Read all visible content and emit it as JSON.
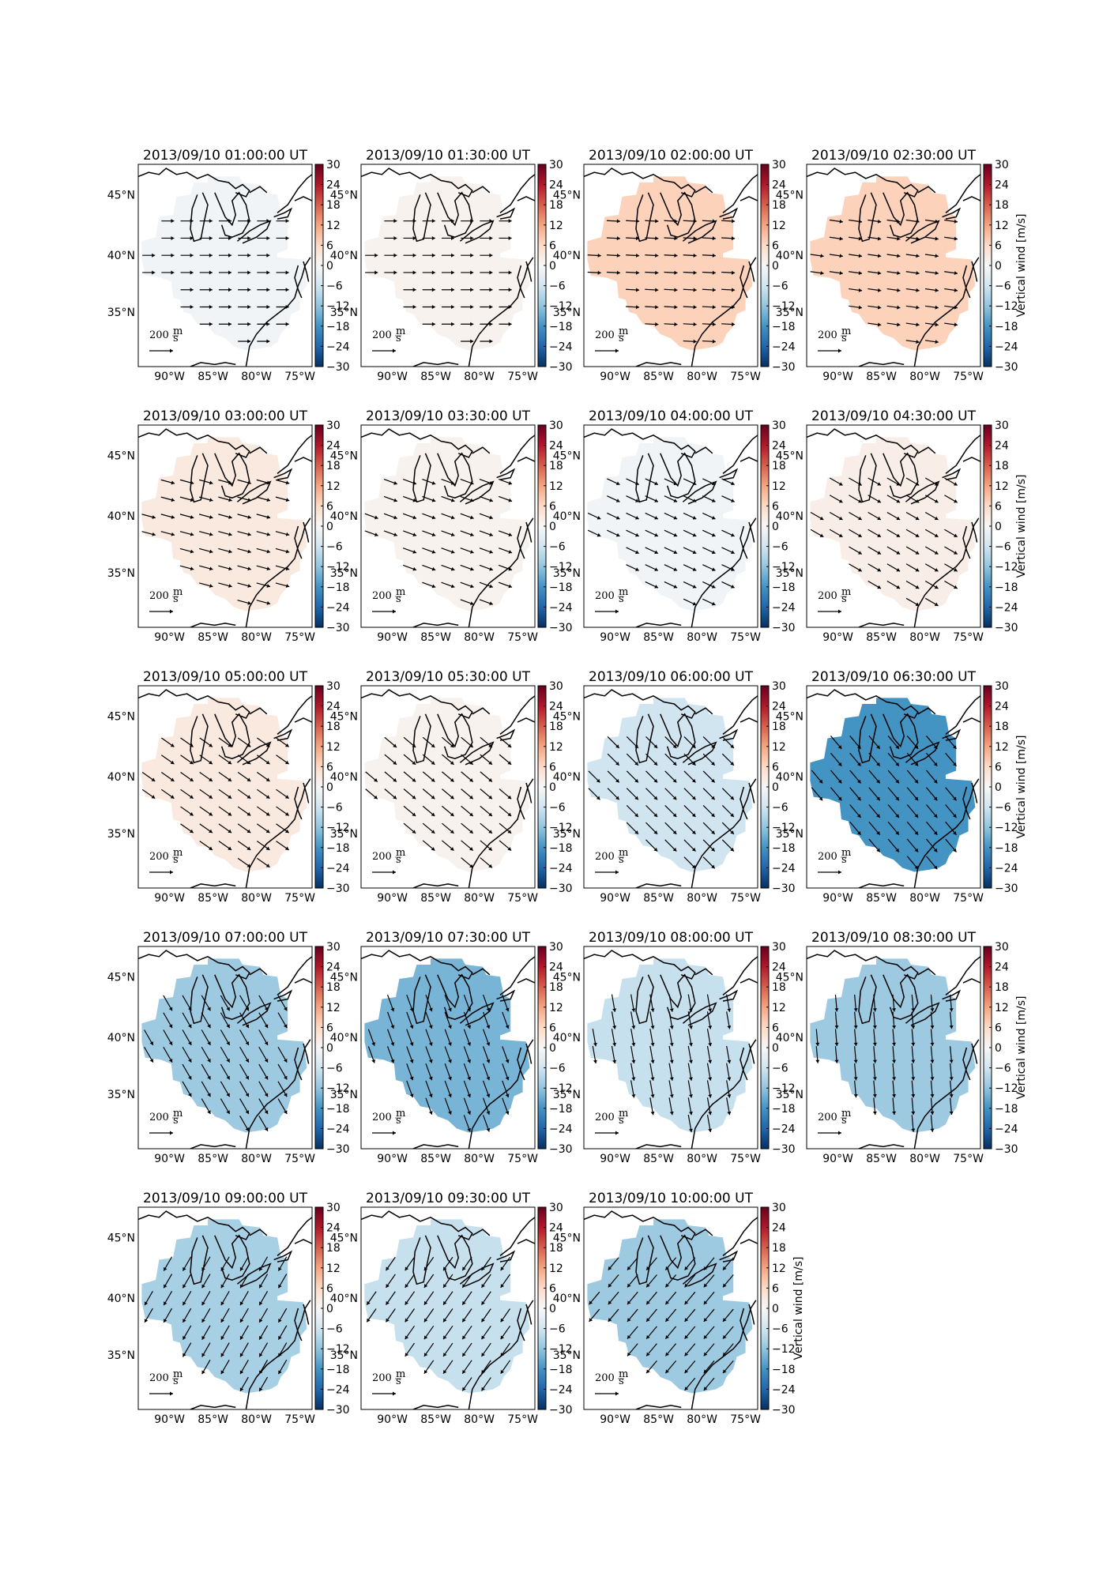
{
  "chart_data": {
    "type": "heatmap",
    "description_units": "vertical wind color scale with horizontal wind vectors over the eastern United States",
    "colorbar": {
      "label": "Vertical wind [m/s]",
      "range": [
        -30,
        30
      ],
      "ticks": [
        "30",
        "24",
        "18",
        "12",
        "6",
        "0",
        "−6",
        "−12",
        "−18",
        "−24",
        "−30"
      ]
    },
    "lon_ticks": [
      "90°W",
      "85°W",
      "80°W",
      "75°W"
    ],
    "lat_ticks": [
      "45°N",
      "40°N",
      "35°N"
    ],
    "vector_key": "200",
    "vector_key_unit_num": "m",
    "vector_key_unit_den": "s",
    "panels": [
      {
        "title": "2013/09/10 01:00:00 UT",
        "vertical_wind": -1,
        "wind_dir_deg": 0,
        "wind_len": 0.45
      },
      {
        "title": "2013/09/10 01:30:00 UT",
        "vertical_wind": 1,
        "wind_dir_deg": 0,
        "wind_len": 0.45
      },
      {
        "title": "2013/09/10 02:00:00 UT",
        "vertical_wind": 7,
        "wind_dir_deg": 3,
        "wind_len": 0.5
      },
      {
        "title": "2013/09/10 02:30:00 UT",
        "vertical_wind": 7,
        "wind_dir_deg": 8,
        "wind_len": 0.5
      },
      {
        "title": "2013/09/10 03:00:00 UT",
        "vertical_wind": 3,
        "wind_dir_deg": 15,
        "wind_len": 0.55
      },
      {
        "title": "2013/09/10 03:30:00 UT",
        "vertical_wind": 1,
        "wind_dir_deg": 20,
        "wind_len": 0.55
      },
      {
        "title": "2013/09/10 04:00:00 UT",
        "vertical_wind": -1,
        "wind_dir_deg": 25,
        "wind_len": 0.55
      },
      {
        "title": "2013/09/10 04:30:00 UT",
        "vertical_wind": 2,
        "wind_dir_deg": 30,
        "wind_len": 0.6
      },
      {
        "title": "2013/09/10 05:00:00 UT",
        "vertical_wind": 3,
        "wind_dir_deg": 35,
        "wind_len": 0.65
      },
      {
        "title": "2013/09/10 05:30:00 UT",
        "vertical_wind": 1,
        "wind_dir_deg": 40,
        "wind_len": 0.65
      },
      {
        "title": "2013/09/10 06:00:00 UT",
        "vertical_wind": -6,
        "wind_dir_deg": 45,
        "wind_len": 0.7
      },
      {
        "title": "2013/09/10 06:30:00 UT",
        "vertical_wind": -18,
        "wind_dir_deg": 50,
        "wind_len": 0.75
      },
      {
        "title": "2013/09/10 07:00:00 UT",
        "vertical_wind": -11,
        "wind_dir_deg": 60,
        "wind_len": 0.8
      },
      {
        "title": "2013/09/10 07:30:00 UT",
        "vertical_wind": -14,
        "wind_dir_deg": 70,
        "wind_len": 0.8
      },
      {
        "title": "2013/09/10 08:00:00 UT",
        "vertical_wind": -7,
        "wind_dir_deg": 80,
        "wind_len": 0.8
      },
      {
        "title": "2013/09/10 08:30:00 UT",
        "vertical_wind": -11,
        "wind_dir_deg": 85,
        "wind_len": 0.75
      },
      {
        "title": "2013/09/10 09:00:00 UT",
        "vertical_wind": -10,
        "wind_dir_deg": 120,
        "wind_len": 0.7
      },
      {
        "title": "2013/09/10 09:30:00 UT",
        "vertical_wind": -7,
        "wind_dir_deg": 125,
        "wind_len": 0.7
      },
      {
        "title": "2013/09/10 10:00:00 UT",
        "vertical_wind": -11,
        "wind_dir_deg": 130,
        "wind_len": 0.7
      }
    ]
  }
}
